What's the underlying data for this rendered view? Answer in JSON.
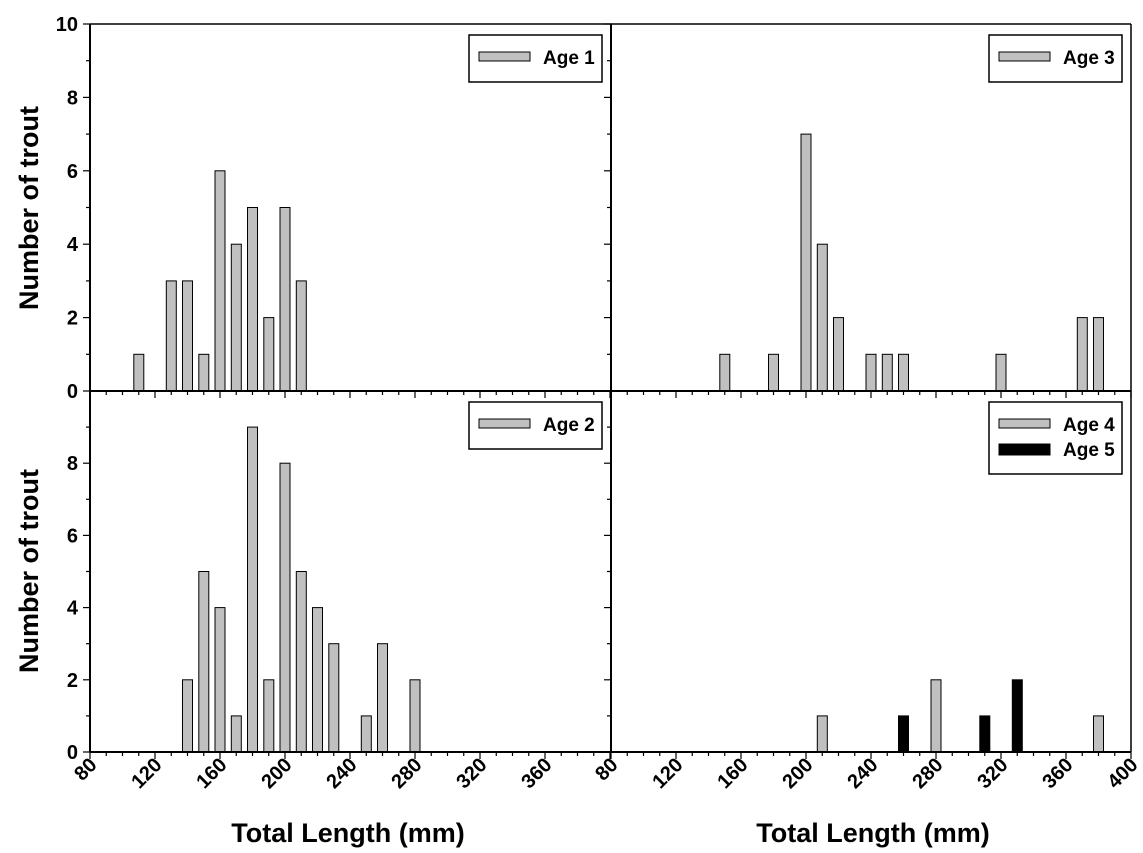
{
  "chart_data": {
    "type": "bar",
    "layout": "2x2 grid, shared axes",
    "ylabel": "Number of trout",
    "xlabel": "Total Length (mm)",
    "xlim": [
      80,
      400
    ],
    "ylim": [
      0,
      10
    ],
    "legend_position": "top-right",
    "colors": {
      "gray": "#c0c0c0",
      "black": "#000000"
    },
    "panels": [
      {
        "position": "top-left",
        "series": [
          {
            "name": "Age 1",
            "color": "#c0c0c0",
            "x": [
              110,
              130,
              140,
              150,
              160,
              170,
              180,
              190,
              200,
              210
            ],
            "values": [
              1,
              3,
              3,
              1,
              6,
              4,
              5,
              2,
              5,
              3
            ]
          }
        ]
      },
      {
        "position": "top-right",
        "series": [
          {
            "name": "Age 3",
            "color": "#c0c0c0",
            "x": [
              150,
              180,
              200,
              210,
              220,
              240,
              250,
              260,
              320,
              370,
              380
            ],
            "values": [
              1,
              1,
              7,
              4,
              2,
              1,
              1,
              1,
              1,
              2,
              2
            ]
          }
        ]
      },
      {
        "position": "bottom-left",
        "series": [
          {
            "name": "Age 2",
            "color": "#c0c0c0",
            "x": [
              140,
              150,
              160,
              170,
              180,
              190,
              200,
              210,
              220,
              230,
              250,
              260,
              280
            ],
            "values": [
              2,
              5,
              4,
              1,
              9,
              2,
              8,
              5,
              4,
              3,
              1,
              3,
              2
            ]
          }
        ]
      },
      {
        "position": "bottom-right",
        "series": [
          {
            "name": "Age 4",
            "color": "#c0c0c0",
            "x": [
              210,
              280,
              380
            ],
            "values": [
              1,
              2,
              1
            ]
          },
          {
            "name": "Age 5",
            "color": "#000000",
            "x": [
              260,
              310,
              330
            ],
            "values": [
              1,
              1,
              2
            ]
          }
        ]
      }
    ],
    "y_ticks_top": [
      "0",
      "2",
      "4",
      "6",
      "8",
      "10"
    ],
    "y_ticks_bottom": [
      "0",
      "2",
      "4",
      "6",
      "8"
    ],
    "x_ticks_left": [
      "80",
      "120",
      "160",
      "200",
      "240",
      "280",
      "320",
      "360"
    ],
    "x_ticks_right": [
      "80",
      "120",
      "160",
      "200",
      "240",
      "280",
      "320",
      "360",
      "400"
    ]
  }
}
